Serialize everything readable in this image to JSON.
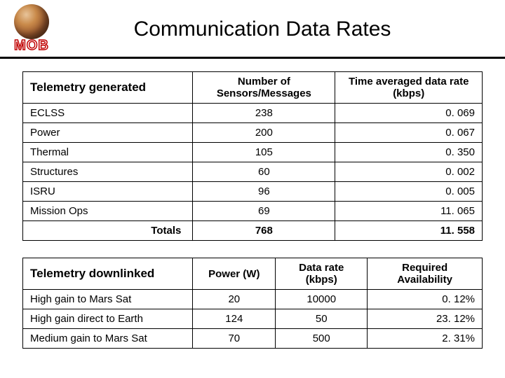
{
  "header": {
    "logo_label": "MOB",
    "title": "Communication Data Rates"
  },
  "table1": {
    "columns": [
      "Telemetry generated",
      "Number of Sensors/Messages",
      "Time averaged data rate (kbps)"
    ],
    "col_widths": [
      "37%",
      "31%",
      "32%"
    ],
    "rows": [
      [
        "ECLSS",
        "238",
        "0. 069"
      ],
      [
        "Power",
        "200",
        "0. 067"
      ],
      [
        "Thermal",
        "105",
        "0. 350"
      ],
      [
        "Structures",
        "60",
        "0. 002"
      ],
      [
        "ISRU",
        "96",
        "0. 005"
      ],
      [
        "Mission Ops",
        "69",
        "11. 065"
      ]
    ],
    "totals": [
      "Totals",
      "768",
      "11. 558"
    ]
  },
  "table2": {
    "columns": [
      "Telemetry downlinked",
      "Power (W)",
      "Data rate (kbps)",
      "Required Availability"
    ],
    "col_widths": [
      "37%",
      "18%",
      "20%",
      "25%"
    ],
    "rows": [
      [
        "High gain to Mars Sat",
        "20",
        "10000",
        "0. 12%"
      ],
      [
        "High gain direct to Earth",
        "124",
        "50",
        "23. 12%"
      ],
      [
        "Medium gain to Mars Sat",
        "70",
        "500",
        "2. 31%"
      ]
    ]
  }
}
